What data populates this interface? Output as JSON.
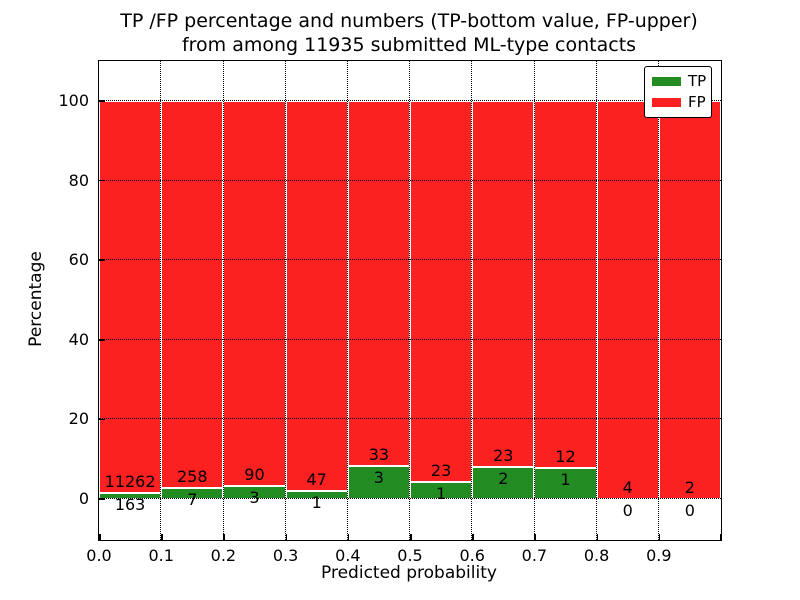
{
  "title": {
    "line1": "TP /FP percentage and numbers (TP-bottom value, FP-upper)",
    "line2": "from among 11935 submitted ML-type contacts"
  },
  "legend": {
    "position": "upper right",
    "items": [
      {
        "label": "TP",
        "color": "#228b22"
      },
      {
        "label": "FP",
        "color": "#fb2121"
      }
    ]
  },
  "chart_data": {
    "type": "bar",
    "stacked": true,
    "normalized": "percent (TP+FP = 100% in each bin)",
    "title": "TP /FP percentage and numbers (TP-bottom value, FP-upper)\nfrom among 11935 submitted ML-type contacts",
    "xlabel": "Predicted probability",
    "ylabel": "Percentage",
    "total_contacts": 11935,
    "categories": [
      "0.0-0.1",
      "0.1-0.2",
      "0.2-0.3",
      "0.3-0.4",
      "0.4-0.5",
      "0.5-0.6",
      "0.6-0.7",
      "0.7-0.8",
      "0.8-0.9",
      "0.9-1.0"
    ],
    "series": [
      {
        "name": "TP",
        "color": "#228b22",
        "counts": [
          163,
          7,
          3,
          1,
          3,
          1,
          2,
          1,
          0,
          0
        ]
      },
      {
        "name": "FP",
        "color": "#fb2121",
        "counts": [
          11262,
          258,
          90,
          47,
          33,
          23,
          23,
          12,
          4,
          2
        ]
      }
    ],
    "tp_percent_per_bin": [
      1.43,
      2.64,
      3.23,
      2.08,
      8.33,
      4.17,
      8.0,
      7.69,
      0.0,
      0.0
    ],
    "x_ticks": [
      "0.0",
      "0.1",
      "0.2",
      "0.3",
      "0.4",
      "0.5",
      "0.6",
      "0.7",
      "0.8",
      "0.9"
    ],
    "y_ticks": [
      0,
      20,
      40,
      60,
      80,
      100
    ],
    "xlim": [
      0.0,
      1.0
    ],
    "ylim": [
      -10.3,
      110.1
    ],
    "grid": {
      "style": "dotted",
      "color": "#000000",
      "drawn_above_bars": true
    },
    "bar_edge_color": "#ffffff"
  }
}
